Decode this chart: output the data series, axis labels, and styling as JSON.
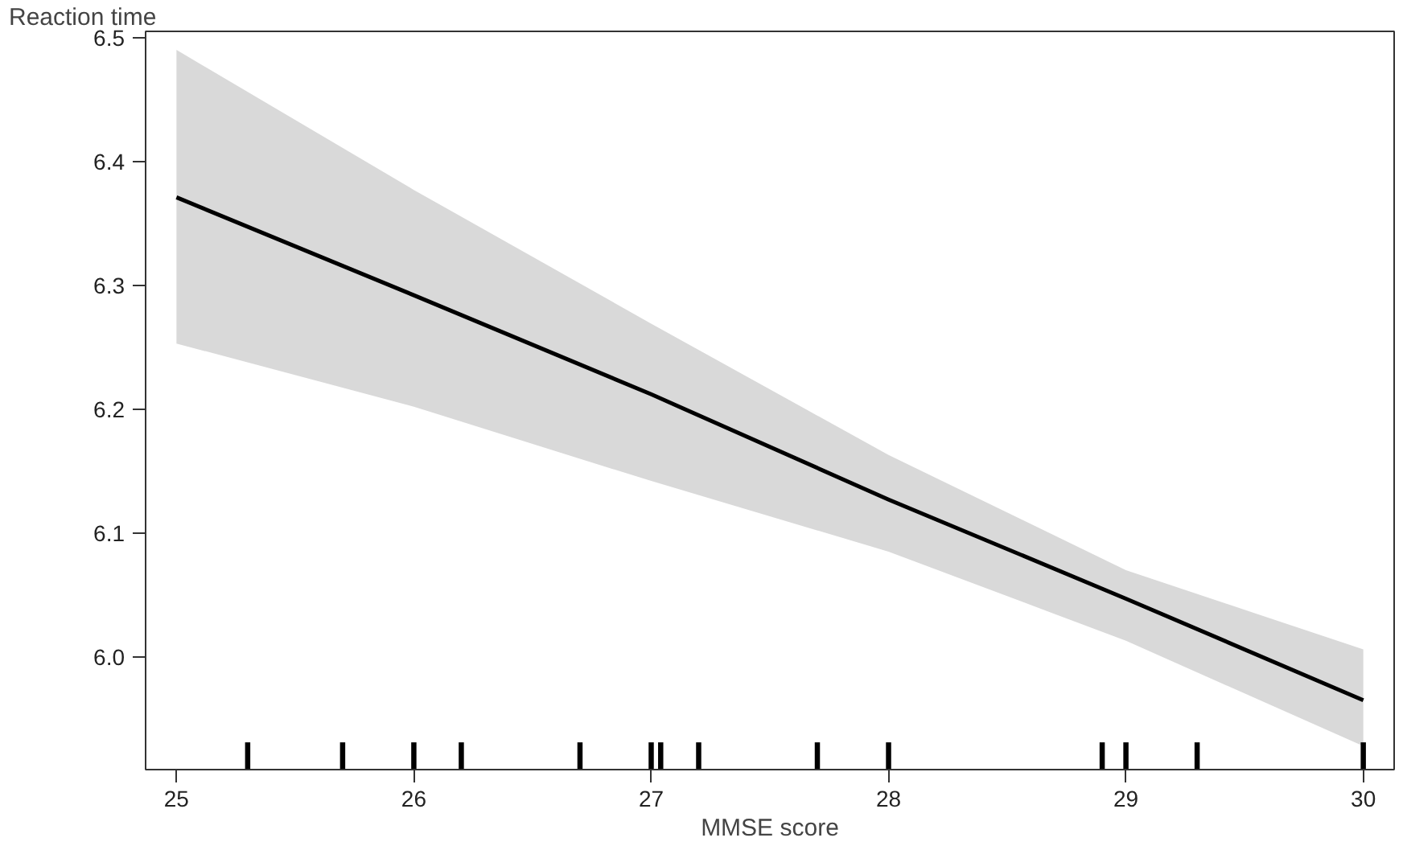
{
  "chart_data": {
    "type": "line",
    "xlabel": "MMSE score",
    "ylabel": "Reaction time",
    "xlim": [
      24.87,
      30.13
    ],
    "xticks": [
      25,
      26,
      27,
      28,
      29,
      30
    ],
    "ylim": [
      5.909,
      6.505
    ],
    "yticks": [
      {
        "value": 6.0,
        "label": "6.0"
      },
      6.1,
      6.2,
      6.3,
      6.4,
      6.5
    ],
    "grid": false,
    "line_style": "solid",
    "series": [
      {
        "color": "#000000",
        "x": [
          25,
          26,
          27,
          28,
          29,
          30
        ],
        "values": [
          6.371,
          6.292,
          6.212,
          6.127,
          6.047,
          5.965
        ],
        "lower": [
          6.253,
          6.202,
          6.142,
          6.085,
          6.013,
          5.928
        ],
        "upper": [
          6.49,
          6.377,
          6.269,
          6.163,
          6.07,
          6.006
        ]
      },
      {
        "type": "bar",
        "color": "#000000",
        "x": [
          25.3,
          25.7,
          26.0,
          26.2,
          26.7,
          27.0,
          27.04,
          27.2,
          27.7,
          28.0,
          28.9,
          29.0,
          29.3,
          30.0
        ],
        "values": [
          0.022,
          0.022,
          0.022,
          0.022,
          0.022,
          0.022,
          0.022,
          0.022,
          0.022,
          0.022,
          0.022,
          0.022,
          0.022,
          0.022
        ],
        "base": [
          5.909,
          5.909,
          5.909,
          5.909,
          5.909,
          5.909,
          5.909,
          5.909,
          5.909,
          5.909,
          5.909,
          5.909,
          5.909,
          5.909
        ]
      }
    ]
  }
}
